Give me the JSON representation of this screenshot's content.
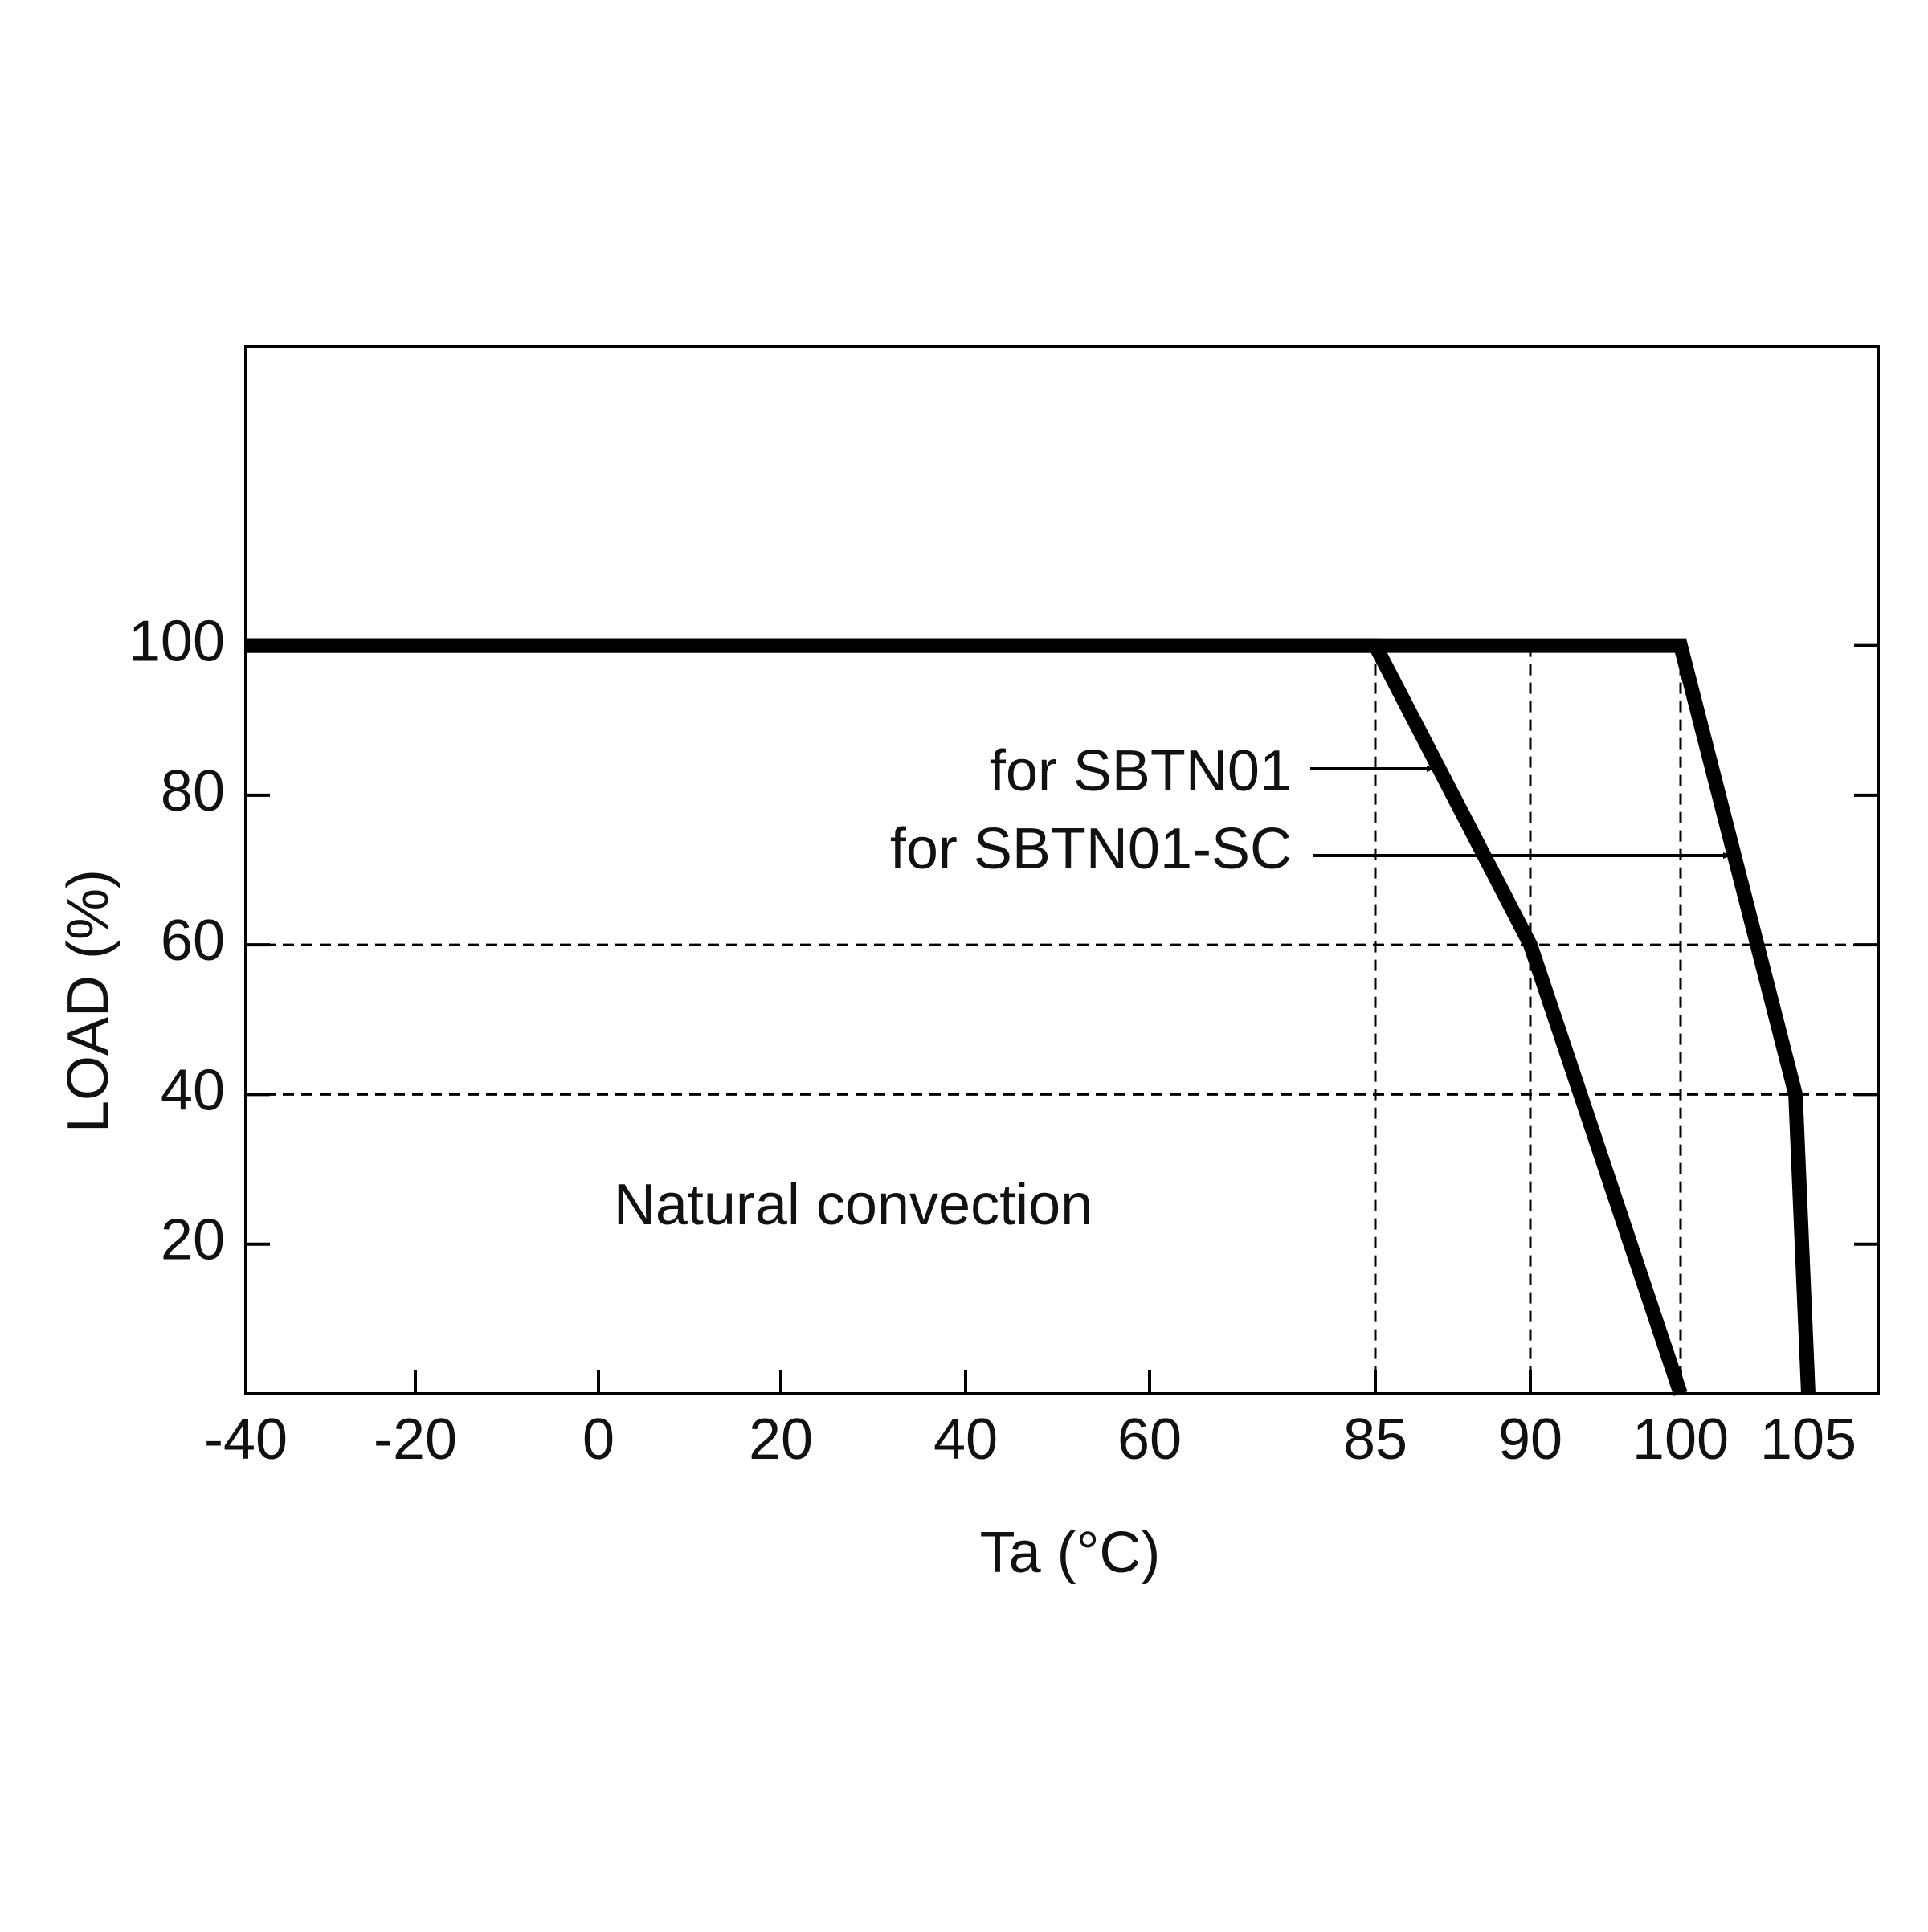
{
  "chart_data": {
    "type": "line",
    "x_label": "Ta (°C)",
    "y_label": "LOAD (%)",
    "series": [
      {
        "name": "for SBTN01",
        "color": "#000000",
        "x": [
          -40,
          85,
          90,
          100
        ],
        "values": [
          100,
          100,
          60,
          0
        ]
      },
      {
        "name": "for SBTN01-SC",
        "color": "#000000",
        "x": [
          -40,
          100,
          104.5,
          105
        ],
        "values": [
          100,
          100,
          40,
          0
        ]
      }
    ],
    "annotations": [
      "Natural convection"
    ],
    "xlim": [
      -40,
      108
    ],
    "xticks": [
      -40,
      -20,
      0,
      20,
      40,
      60,
      85,
      90,
      100,
      105
    ],
    "ylim": [
      0,
      140
    ],
    "yticks": [
      20,
      40,
      60,
      80,
      100
    ],
    "hlines": [
      60,
      40
    ],
    "vlines": [
      85,
      90,
      100
    ]
  }
}
